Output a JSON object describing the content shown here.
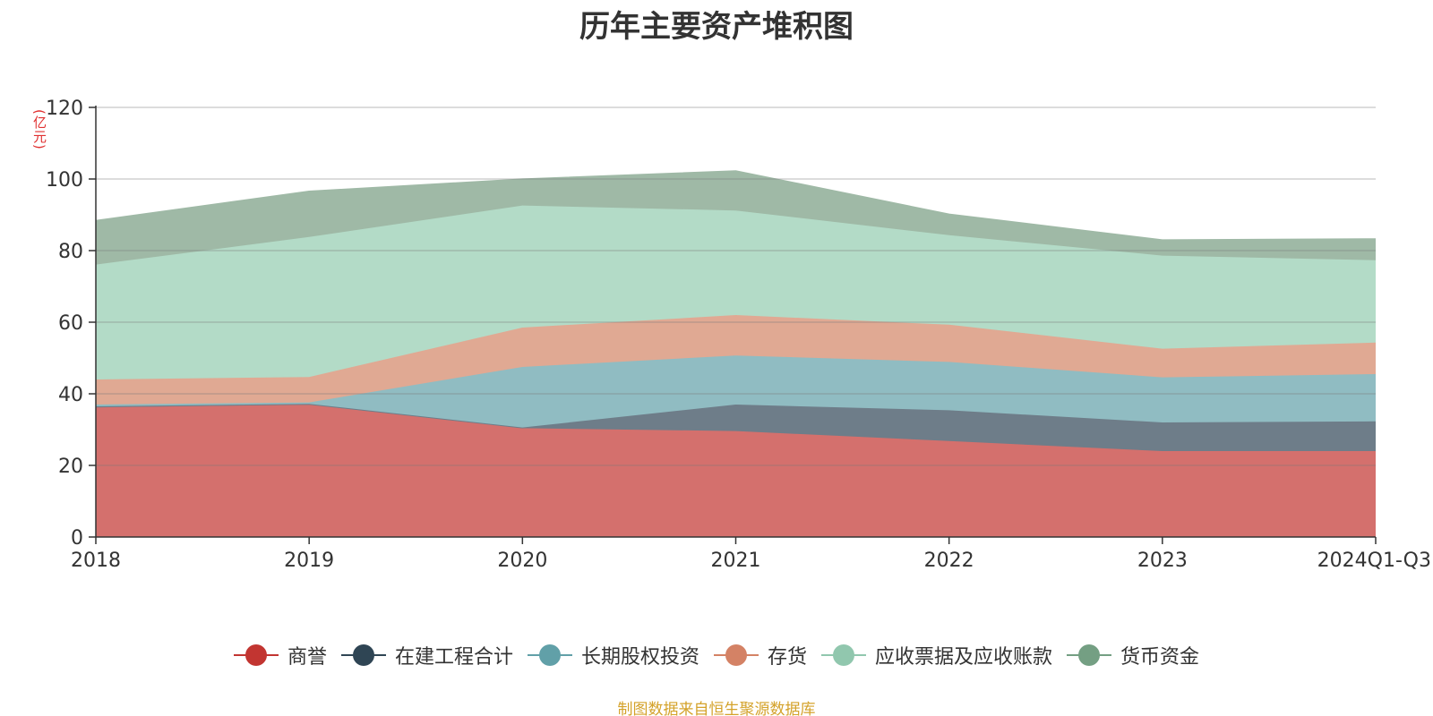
{
  "chart_data": {
    "type": "area",
    "stacked": true,
    "title": "历年主要资产堆积图",
    "unit_label": "(亿元)",
    "source_note": "制图数据来自恒生聚源数据库",
    "categories": [
      "2018",
      "2019",
      "2020",
      "2021",
      "2022",
      "2023",
      "2024Q1-Q3"
    ],
    "ylim": [
      0,
      120
    ],
    "yticks": [
      0,
      20,
      40,
      60,
      80,
      100,
      120
    ],
    "grid": true,
    "legend_position": "bottom",
    "series": [
      {
        "name": "商誉",
        "color": "#c23531",
        "fill": "#d4706d",
        "values": [
          36.2,
          37.0,
          30.4,
          29.6,
          26.8,
          24.0,
          24.0
        ]
      },
      {
        "name": "在建工程合计",
        "color": "#2f4554",
        "fill": "#6e7d89",
        "values": [
          0.3,
          0.2,
          0.2,
          7.4,
          8.6,
          8.0,
          8.3
        ]
      },
      {
        "name": "长期股权投资",
        "color": "#61a0a8",
        "fill": "#90bcc2",
        "values": [
          0.5,
          0.4,
          16.9,
          13.7,
          13.5,
          12.6,
          13.2
        ]
      },
      {
        "name": "存货",
        "color": "#d48265",
        "fill": "#e0a993",
        "values": [
          7.0,
          7.1,
          11.0,
          11.3,
          10.4,
          8.0,
          8.8
        ]
      },
      {
        "name": "应收票据及应收账款",
        "color": "#91c7ae",
        "fill": "#b3dbc7",
        "values": [
          32.1,
          39.1,
          34.1,
          29.2,
          25.0,
          26.0,
          23.0
        ]
      },
      {
        "name": "货币资金",
        "color": "#749f83",
        "fill": "#9fb9a6",
        "values": [
          12.2,
          12.7,
          7.3,
          11.0,
          5.8,
          4.3,
          5.9
        ]
      }
    ]
  }
}
